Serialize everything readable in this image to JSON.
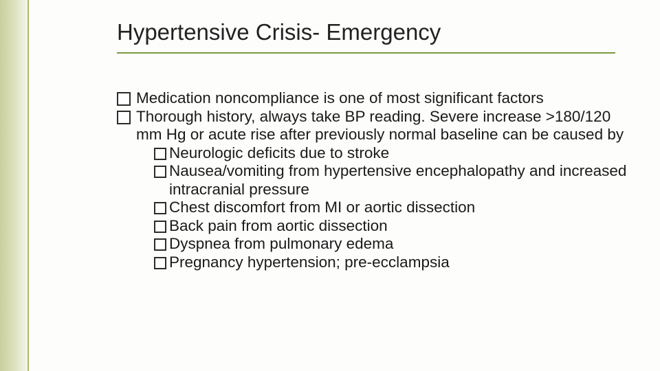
{
  "slide": {
    "title": "Hypertensive Crisis- Emergency",
    "title_fontsize": 33,
    "title_color": "#222222",
    "underline_color": "#7c9a3d",
    "body_fontsize": 22.5,
    "body_color": "#1a1a1a",
    "bullet_border_color": "#2b2b2b",
    "accent_gradient": [
      "#c9cf9e",
      "#dde2bf",
      "#f5f6eb"
    ],
    "accent_border": "#b0b76e",
    "background": "#fdfdfb",
    "bullets": {
      "b1": "Medication noncompliance is one of most significant factors",
      "b2": "Thorough history, always take BP reading.  Severe increase >180/120 mm Hg or acute rise after previously normal baseline can be caused by",
      "b2_children": {
        "c1": "Neurologic deficits due to stroke",
        "c2": "Nausea/vomiting from hypertensive encephalopathy and increased intracranial pressure",
        "c3": "Chest discomfort from MI or aortic dissection",
        "c4": "Back pain from aortic dissection",
        "c5": "Dyspnea from pulmonary edema",
        "c6": "Pregnancy hypertension; pre-ecclampsia"
      }
    }
  }
}
